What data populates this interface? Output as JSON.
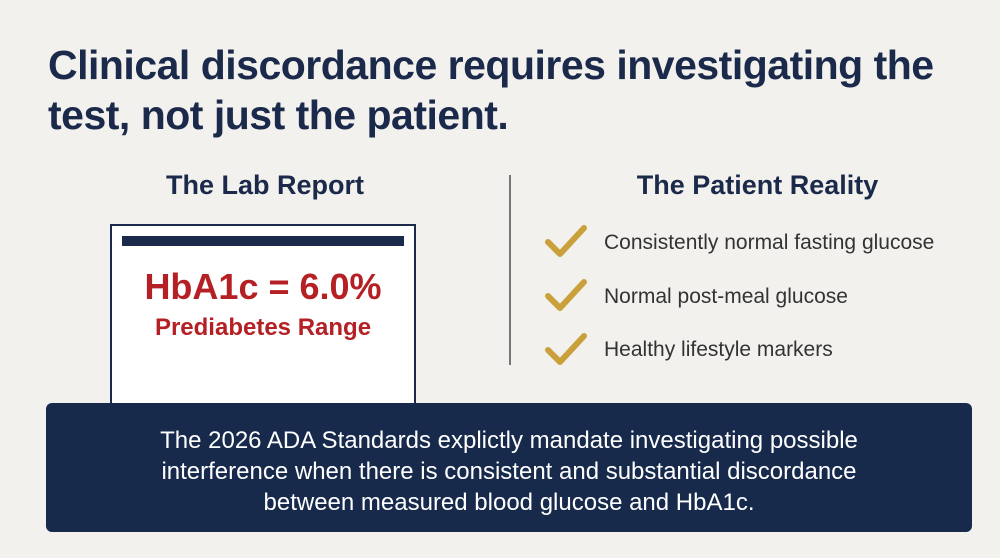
{
  "title": "Clinical discordance requires investigating the test, not just the patient.",
  "lab_report": {
    "heading": "The Lab Report",
    "result": "HbA1c = 6.0%",
    "range": "Prediabetes Range"
  },
  "patient_reality": {
    "heading": "The Patient Reality",
    "items": [
      "Consistently normal fasting glucose",
      "Normal post-meal glucose",
      "Healthy lifestyle markers"
    ]
  },
  "footer": "The 2026 ADA Standards explictly mandate investigating possible interference when there is consistent and substantial discordance between measured blood glucose and HbA1c."
}
